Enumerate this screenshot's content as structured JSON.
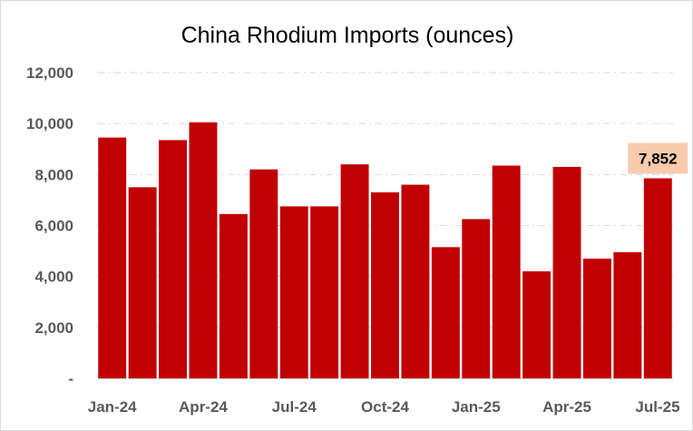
{
  "chart_data": {
    "type": "bar",
    "title": "China Rhodium Imports (ounces)",
    "xlabel": "",
    "ylabel": "",
    "ylim": [
      0,
      12000
    ],
    "yticks": [
      {
        "value": 0,
        "label": "-"
      },
      {
        "value": 2000,
        "label": "2,000"
      },
      {
        "value": 4000,
        "label": "4,000"
      },
      {
        "value": 6000,
        "label": "6,000"
      },
      {
        "value": 8000,
        "label": "8,000"
      },
      {
        "value": 10000,
        "label": "10,000"
      },
      {
        "value": 12000,
        "label": "12,000"
      }
    ],
    "categories": [
      "Jan-24",
      "Feb-24",
      "Mar-24",
      "Apr-24",
      "May-24",
      "Jun-24",
      "Jul-24",
      "Aug-24",
      "Sep-24",
      "Oct-24",
      "Nov-24",
      "Dec-24",
      "Jan-25",
      "Feb-25",
      "Mar-25",
      "Apr-25",
      "May-25",
      "Jun-25",
      "Jul-25"
    ],
    "xtick_labels": [
      {
        "index": 0,
        "label": "Jan-24"
      },
      {
        "index": 3,
        "label": "Apr-24"
      },
      {
        "index": 6,
        "label": "Jul-24"
      },
      {
        "index": 9,
        "label": "Oct-24"
      },
      {
        "index": 12,
        "label": "Jan-25"
      },
      {
        "index": 15,
        "label": "Apr-25"
      },
      {
        "index": 18,
        "label": "Jul-25"
      }
    ],
    "values": [
      9450,
      7500,
      9350,
      10050,
      6450,
      8200,
      6750,
      6750,
      8400,
      7300,
      7600,
      5150,
      6250,
      8350,
      4200,
      8300,
      4700,
      4950,
      7852
    ],
    "bar_color": "#c00000",
    "gridlines": true,
    "callout": {
      "index": 18,
      "label": "7,852",
      "background": "#f8cbad"
    }
  }
}
